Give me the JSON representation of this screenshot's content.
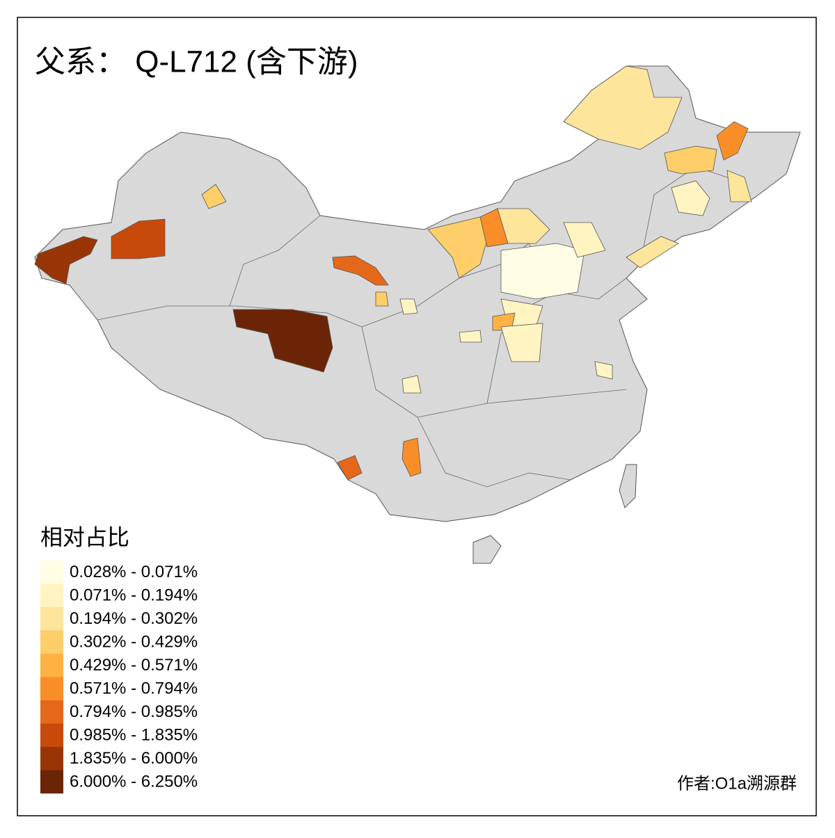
{
  "title": "父系： Q-L712 (含下游)",
  "legend": {
    "title": "相对占比",
    "items": [
      {
        "label": "0.028% - 0.071%",
        "color": "#fffde4"
      },
      {
        "label": "0.071% - 0.194%",
        "color": "#fff4c2"
      },
      {
        "label": "0.194% - 0.302%",
        "color": "#fee59c"
      },
      {
        "label": "0.302% - 0.429%",
        "color": "#fece6a"
      },
      {
        "label": "0.429% - 0.571%",
        "color": "#feb244"
      },
      {
        "label": "0.571% - 0.794%",
        "color": "#f98e28"
      },
      {
        "label": "0.794% - 0.985%",
        "color": "#e5681a"
      },
      {
        "label": "0.985% - 1.835%",
        "color": "#c84a0b"
      },
      {
        "label": "1.835% - 6.000%",
        "color": "#983507"
      },
      {
        "label": "6.000% - 6.250%",
        "color": "#6b2506"
      }
    ]
  },
  "credit": "作者:O1a溯源群"
}
